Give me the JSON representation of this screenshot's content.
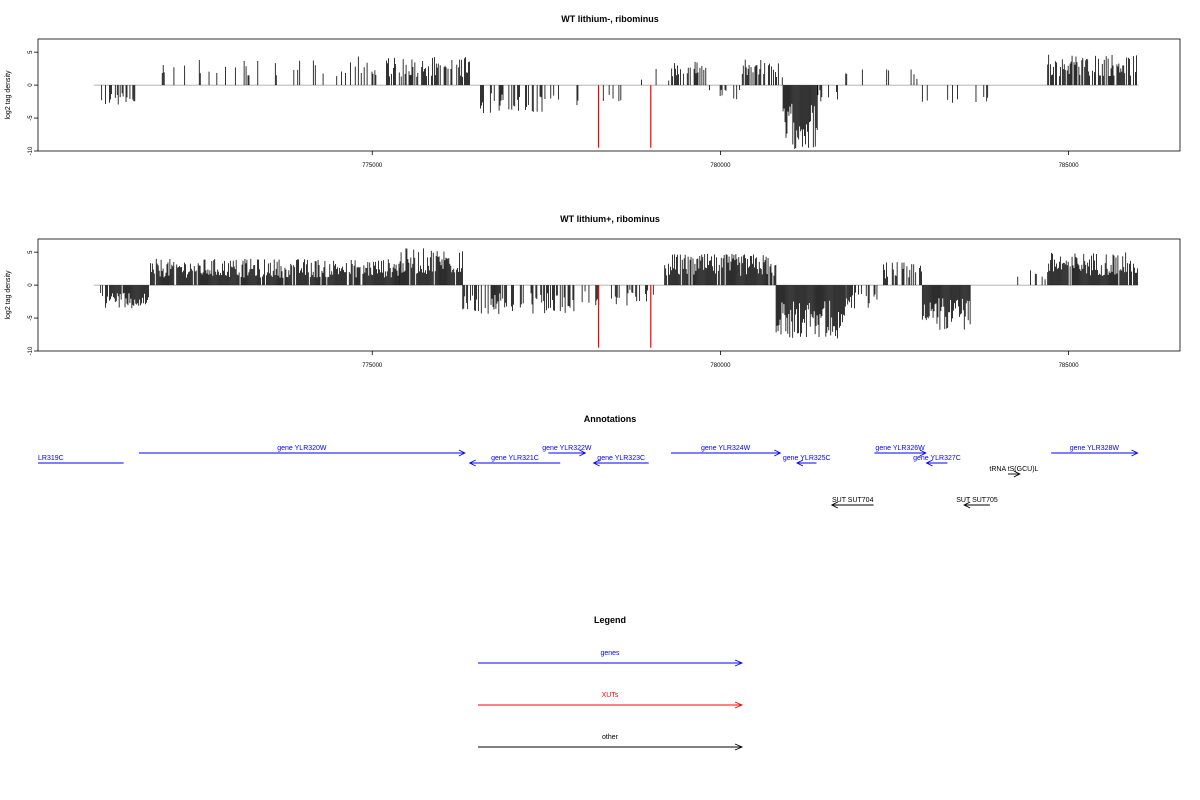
{
  "colors": {
    "genes": "#0000ff",
    "XUTs": "#ff0000",
    "other": "#000000",
    "bars": "#000000",
    "baseline": "#999999"
  },
  "chart_data": [
    {
      "type": "bar",
      "title": "WT lithium-, ribominus",
      "ylabel": "log2 tag density",
      "ylim": [
        -10,
        7
      ],
      "yticks": [
        "-10",
        "-5",
        "0",
        "5"
      ],
      "xlim": [
        770200,
        786600
      ],
      "xticks": [
        "775000",
        "780000",
        "785000"
      ],
      "x_tick_values": [
        775000,
        780000,
        785000
      ],
      "grid": false,
      "xut_marks": [
        778250,
        779000
      ],
      "segments": [
        {
          "from": 771100,
          "to": 771600,
          "sign": -1,
          "density": 0.5,
          "amp": 2.5
        },
        {
          "from": 771900,
          "to": 774800,
          "sign": 1,
          "density": 0.18,
          "amp": 3.2
        },
        {
          "from": 774800,
          "to": 776400,
          "sign": 1,
          "density": 0.5,
          "amp": 3.5
        },
        {
          "from": 776500,
          "to": 777700,
          "sign": -1,
          "density": 0.35,
          "amp": 3.5
        },
        {
          "from": 777800,
          "to": 778600,
          "sign": -1,
          "density": 0.15,
          "amp": 2.5
        },
        {
          "from": 778600,
          "to": 779300,
          "sign": 1,
          "density": 0.1,
          "amp": 2.0
        },
        {
          "from": 779300,
          "to": 779800,
          "sign": 1,
          "density": 0.45,
          "amp": 3.0
        },
        {
          "from": 779800,
          "to": 780300,
          "sign": -1,
          "density": 0.15,
          "amp": 2.0
        },
        {
          "from": 780300,
          "to": 780900,
          "sign": 1,
          "density": 0.6,
          "amp": 3.2
        },
        {
          "from": 780900,
          "to": 781400,
          "sign": -1,
          "density": 1.0,
          "amp": 7.8
        },
        {
          "from": 781400,
          "to": 781700,
          "sign": -1,
          "density": 0.4,
          "amp": 2.0
        },
        {
          "from": 781800,
          "to": 782900,
          "sign": 1,
          "density": 0.08,
          "amp": 2.0
        },
        {
          "from": 782900,
          "to": 783900,
          "sign": -1,
          "density": 0.15,
          "amp": 3.0
        },
        {
          "from": 784700,
          "to": 786000,
          "sign": 1,
          "density": 0.75,
          "amp": 3.8
        }
      ]
    },
    {
      "type": "bar",
      "title": "WT lithium+, ribominus",
      "ylabel": "log2 tag density",
      "ylim": [
        -10,
        7
      ],
      "yticks": [
        "-10",
        "-5",
        "0",
        "5"
      ],
      "xlim": [
        770200,
        786600
      ],
      "xticks": [
        "775000",
        "780000",
        "785000"
      ],
      "x_tick_values": [
        775000,
        780000,
        785000
      ],
      "grid": false,
      "xut_marks": [
        778250,
        779000
      ],
      "segments": [
        {
          "from": 771100,
          "to": 771800,
          "sign": -1,
          "density": 0.9,
          "amp": 2.8
        },
        {
          "from": 771800,
          "to": 775400,
          "sign": 1,
          "density": 0.9,
          "amp": 3.2
        },
        {
          "from": 775400,
          "to": 776300,
          "sign": 1,
          "density": 0.9,
          "amp": 4.5
        },
        {
          "from": 776300,
          "to": 777900,
          "sign": -1,
          "density": 0.55,
          "amp": 3.5
        },
        {
          "from": 778000,
          "to": 778700,
          "sign": -1,
          "density": 0.25,
          "amp": 2.5
        },
        {
          "from": 778700,
          "to": 779200,
          "sign": -1,
          "density": 0.3,
          "amp": 2.0
        },
        {
          "from": 779200,
          "to": 780800,
          "sign": 1,
          "density": 0.9,
          "amp": 3.8
        },
        {
          "from": 780800,
          "to": 781800,
          "sign": -1,
          "density": 1.0,
          "amp": 6.5
        },
        {
          "from": 781800,
          "to": 782300,
          "sign": -1,
          "density": 0.6,
          "amp": 3.0
        },
        {
          "from": 782300,
          "to": 782900,
          "sign": 1,
          "density": 0.55,
          "amp": 2.8
        },
        {
          "from": 782900,
          "to": 783600,
          "sign": -1,
          "density": 1.0,
          "amp": 5.5
        },
        {
          "from": 784200,
          "to": 784700,
          "sign": 1,
          "density": 0.25,
          "amp": 1.8
        },
        {
          "from": 784700,
          "to": 786000,
          "sign": 1,
          "density": 0.95,
          "amp": 4.0
        }
      ]
    }
  ],
  "annotations": {
    "title": "Annotations",
    "features": [
      {
        "label": "LR319C",
        "start": 770200,
        "end": 771430,
        "strand": "none",
        "row": 1,
        "kind": "genes",
        "label_anchor": "start"
      },
      {
        "label": "gene YLR320W",
        "start": 771650,
        "end": 776330,
        "strand": "+",
        "row": 0,
        "kind": "genes"
      },
      {
        "label": "gene YLR322W",
        "start": 777530,
        "end": 778060,
        "strand": "+",
        "row": 0,
        "kind": "genes"
      },
      {
        "label": "gene YLR321C",
        "start": 776400,
        "end": 777700,
        "strand": "-",
        "row": 1,
        "kind": "genes"
      },
      {
        "label": "gene YLR323C",
        "start": 778180,
        "end": 778970,
        "strand": "-",
        "row": 1,
        "kind": "genes"
      },
      {
        "label": "gene YLR324W",
        "start": 779290,
        "end": 780860,
        "strand": "+",
        "row": 0,
        "kind": "genes"
      },
      {
        "label": "gene YLR325C",
        "start": 781100,
        "end": 781380,
        "strand": "-",
        "row": 1,
        "kind": "genes"
      },
      {
        "label": "gene YLR326W",
        "start": 782210,
        "end": 782950,
        "strand": "+",
        "row": 0,
        "kind": "genes"
      },
      {
        "label": "gene YLR327C",
        "start": 782960,
        "end": 783260,
        "strand": "-",
        "row": 1,
        "kind": "genes"
      },
      {
        "label": "tRNA tS(GCU)L",
        "start": 784130,
        "end": 784300,
        "strand": "+",
        "row": 2,
        "kind": "other"
      },
      {
        "label": "gene YLR328W",
        "start": 784750,
        "end": 785990,
        "strand": "+",
        "row": 0,
        "kind": "genes"
      },
      {
        "label": "SUT SUT704",
        "start": 781600,
        "end": 782200,
        "strand": "-",
        "row": 4,
        "kind": "other"
      },
      {
        "label": "SUT SUT705",
        "start": 783500,
        "end": 783870,
        "strand": "-",
        "row": 4,
        "kind": "other"
      }
    ]
  },
  "legend": {
    "title": "Legend",
    "items": [
      {
        "label": "genes",
        "kind": "genes"
      },
      {
        "label": "XUTs",
        "kind": "XUTs"
      },
      {
        "label": "other",
        "kind": "other"
      }
    ]
  }
}
